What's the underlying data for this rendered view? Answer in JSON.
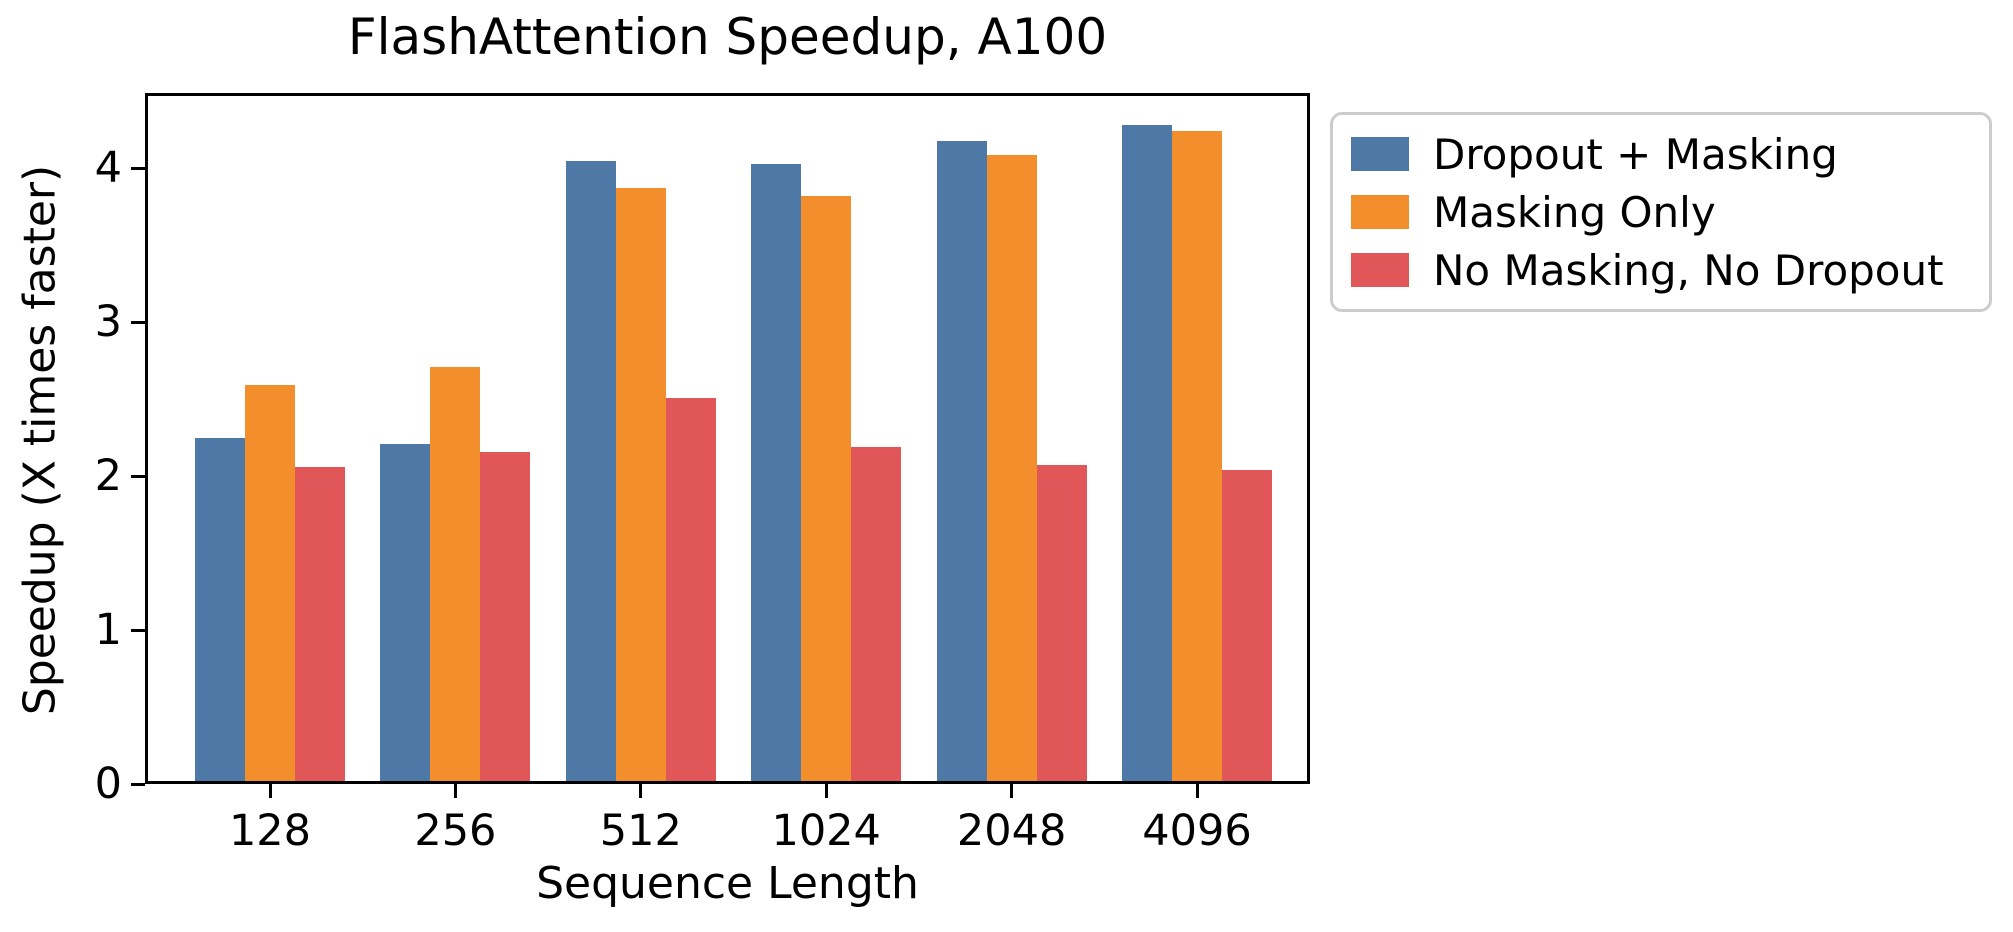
{
  "chart_data": {
    "type": "bar",
    "title": "FlashAttention Speedup, A100",
    "xlabel": "Sequence Length",
    "ylabel": "Speedup (X times faster)",
    "categories": [
      "128",
      "256",
      "512",
      "1024",
      "2048",
      "4096"
    ],
    "series": [
      {
        "name": "Dropout + Masking",
        "color": "#4e79a7",
        "values": [
          2.25,
          2.21,
          4.05,
          4.03,
          4.18,
          4.28
        ]
      },
      {
        "name": "Masking Only",
        "color": "#f28e2b",
        "values": [
          2.59,
          2.71,
          3.87,
          3.82,
          4.09,
          4.24
        ]
      },
      {
        "name": "No Masking, No Dropout",
        "color": "#e15759",
        "values": [
          2.06,
          2.16,
          2.51,
          2.19,
          2.07,
          2.04
        ]
      }
    ],
    "ylim": [
      0,
      4.49
    ],
    "yticks": [
      0,
      1,
      2,
      3,
      4
    ],
    "grid": false,
    "legend_position": "outside-upper-right"
  }
}
